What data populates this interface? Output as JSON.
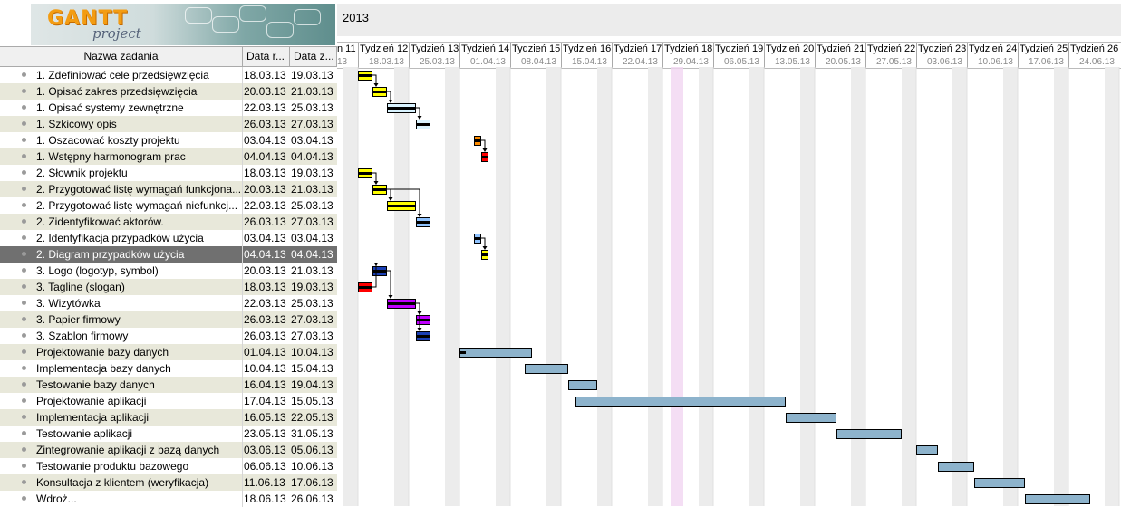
{
  "logo": {
    "word": "GANTT",
    "sub": "project"
  },
  "timeline": {
    "year": "2013",
    "weeks": [
      {
        "name": "n 11",
        "date": "13"
      },
      {
        "name": "Tydzień 12",
        "date": "18.03.13"
      },
      {
        "name": "Tydzień 13",
        "date": "25.03.13"
      },
      {
        "name": "Tydzień 14",
        "date": "01.04.13"
      },
      {
        "name": "Tydzień 15",
        "date": "08.04.13"
      },
      {
        "name": "Tydzień 16",
        "date": "15.04.13"
      },
      {
        "name": "Tydzień 17",
        "date": "22.04.13"
      },
      {
        "name": "Tydzień 18",
        "date": "29.04.13"
      },
      {
        "name": "Tydzień 19",
        "date": "06.05.13"
      },
      {
        "name": "Tydzień 20",
        "date": "13.05.13"
      },
      {
        "name": "Tydzień 21",
        "date": "20.05.13"
      },
      {
        "name": "Tydzień 22",
        "date": "27.05.13"
      },
      {
        "name": "Tydzień 23",
        "date": "03.06.13"
      },
      {
        "name": "Tydzień 24",
        "date": "10.06.13"
      },
      {
        "name": "Tydzień 25",
        "date": "17.06.13"
      },
      {
        "name": "Tydzień 26",
        "date": "24.06.13"
      }
    ]
  },
  "table": {
    "headers": {
      "name": "Nazwa zadania",
      "start": "Data r...",
      "end": "Data z..."
    },
    "rows": [
      {
        "name": "1. Zdefiniować cele przedsięwzięcia",
        "start": "18.03.13",
        "end": "19.03.13"
      },
      {
        "name": "1. Opisać zakres przedsięwzięcia",
        "start": "20.03.13",
        "end": "21.03.13"
      },
      {
        "name": "1. Opisać systemy zewnętrzne",
        "start": "22.03.13",
        "end": "25.03.13"
      },
      {
        "name": "1. Szkicowy opis",
        "start": "26.03.13",
        "end": "27.03.13"
      },
      {
        "name": "1. Oszacować koszty projektu",
        "start": "03.04.13",
        "end": "03.04.13"
      },
      {
        "name": "1. Wstępny harmonogram prac",
        "start": "04.04.13",
        "end": "04.04.13"
      },
      {
        "name": "2. Słownik projektu",
        "start": "18.03.13",
        "end": "19.03.13"
      },
      {
        "name": "2. Przygotować listę wymagań funkcjona...",
        "start": "20.03.13",
        "end": "21.03.13"
      },
      {
        "name": "2. Przygotować listę wymagań niefunkcj...",
        "start": "22.03.13",
        "end": "25.03.13"
      },
      {
        "name": "2. Zidentyfikować aktorów.",
        "start": "26.03.13",
        "end": "27.03.13"
      },
      {
        "name": "2. Identyfikacja przypadków użycia",
        "start": "03.04.13",
        "end": "03.04.13"
      },
      {
        "name": "2. Diagram przypadków użycia",
        "start": "04.04.13",
        "end": "04.04.13",
        "selected": true
      },
      {
        "name": "3. Logo (logotyp, symbol)",
        "start": "20.03.13",
        "end": "21.03.13"
      },
      {
        "name": "3. Tagline (slogan)",
        "start": "18.03.13",
        "end": "19.03.13"
      },
      {
        "name": "3. Wizytówka",
        "start": "22.03.13",
        "end": "25.03.13"
      },
      {
        "name": "3. Papier firmowy",
        "start": "26.03.13",
        "end": "27.03.13"
      },
      {
        "name": "3. Szablon firmowy",
        "start": "26.03.13",
        "end": "27.03.13"
      },
      {
        "name": "Projektowanie bazy danych",
        "start": "01.04.13",
        "end": "10.04.13"
      },
      {
        "name": "Implementacja bazy danych",
        "start": "10.04.13",
        "end": "15.04.13"
      },
      {
        "name": "Testowanie bazy danych",
        "start": "16.04.13",
        "end": "19.04.13"
      },
      {
        "name": "Projektowanie aplikacji",
        "start": "17.04.13",
        "end": "15.05.13"
      },
      {
        "name": "Implementacja aplikacji",
        "start": "16.05.13",
        "end": "22.05.13"
      },
      {
        "name": "Testowanie aplikacji",
        "start": "23.05.13",
        "end": "31.05.13"
      },
      {
        "name": "Zintegrowanie aplikacji z bazą danych",
        "start": "03.06.13",
        "end": "05.06.13"
      },
      {
        "name": "Testowanie produktu bazowego",
        "start": "06.06.13",
        "end": "10.06.13"
      },
      {
        "name": "Konsultacja z klientem (weryfikacja)",
        "start": "11.06.13",
        "end": "17.06.13"
      },
      {
        "name": "Wdroż...",
        "start": "18.06.13",
        "end": "26.06.13"
      }
    ]
  },
  "bars": [
    {
      "color": "#ffff00",
      "progress": 1.0
    },
    {
      "color": "#ffff00",
      "progress": 1.0
    },
    {
      "color": "#d9f3ff",
      "progress": 1.0
    },
    {
      "color": "#d9f3ff",
      "progress": 1.0
    },
    {
      "color": "#ff8c00",
      "progress": 1.0
    },
    {
      "color": "#ff0000",
      "progress": 1.0
    },
    {
      "color": "#ffff00",
      "progress": 1.0
    },
    {
      "color": "#ffff00",
      "progress": 1.0
    },
    {
      "color": "#ffff00",
      "progress": 1.0
    },
    {
      "color": "#8fc3ff",
      "progress": 1.0
    },
    {
      "color": "#8fc3ff",
      "progress": 1.0
    },
    {
      "color": "#ffff00",
      "progress": 1.0
    },
    {
      "color": "#1a3fb5",
      "progress": 1.0
    },
    {
      "color": "#ff0000",
      "progress": 1.0
    },
    {
      "color": "#c000ff",
      "progress": 1.0
    },
    {
      "color": "#c000ff",
      "progress": 1.0
    },
    {
      "color": "#1a3fb5",
      "progress": 1.0
    },
    {
      "color": "#8db3cc",
      "progress": 0.1
    },
    {
      "color": "#8db3cc",
      "progress": 0.0
    },
    {
      "color": "#8db3cc",
      "progress": 0.0
    },
    {
      "color": "#8db3cc",
      "progress": 0.0
    },
    {
      "color": "#8db3cc",
      "progress": 0.0
    },
    {
      "color": "#8db3cc",
      "progress": 0.0
    },
    {
      "color": "#8db3cc",
      "progress": 0.0
    },
    {
      "color": "#8db3cc",
      "progress": 0.0
    },
    {
      "color": "#8db3cc",
      "progress": 0.0
    },
    {
      "color": "#8db3cc",
      "progress": 0.0
    }
  ],
  "dependencies": [
    [
      0,
      1
    ],
    [
      1,
      2
    ],
    [
      2,
      3
    ],
    [
      4,
      5
    ],
    [
      6,
      7
    ],
    [
      7,
      8
    ],
    [
      7,
      9
    ],
    [
      10,
      11
    ],
    [
      13,
      12
    ],
    [
      12,
      14
    ],
    [
      14,
      15
    ],
    [
      14,
      16
    ]
  ],
  "today": "30.04.13"
}
